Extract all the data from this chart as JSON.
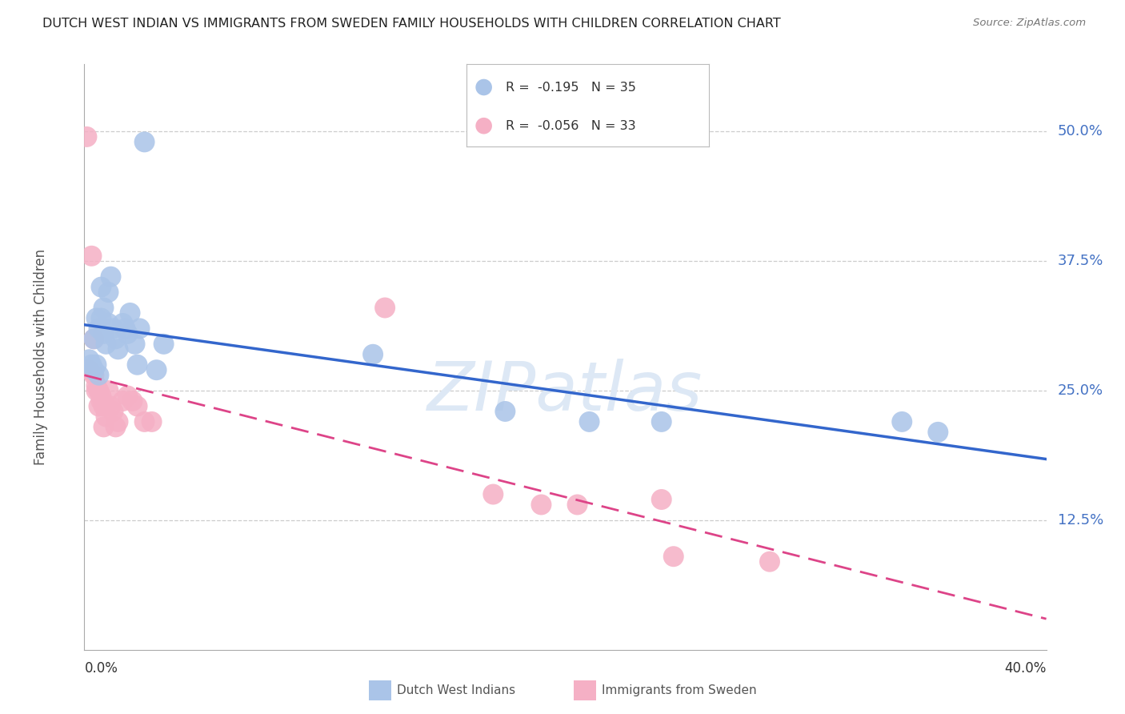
{
  "title": "DUTCH WEST INDIAN VS IMMIGRANTS FROM SWEDEN FAMILY HOUSEHOLDS WITH CHILDREN CORRELATION CHART",
  "source": "Source: ZipAtlas.com",
  "ylabel": "Family Households with Children",
  "right_ytick_labels": [
    "50.0%",
    "37.5%",
    "25.0%",
    "12.5%"
  ],
  "right_ytick_vals": [
    0.5,
    0.375,
    0.25,
    0.125
  ],
  "xlim": [
    0.0,
    0.4
  ],
  "ylim": [
    0.0,
    0.565
  ],
  "legend_blue_r": "R =  -0.195",
  "legend_blue_n": "N = 35",
  "legend_pink_r": "R =  -0.056",
  "legend_pink_n": "N = 33",
  "blue_label": "Dutch West Indians",
  "pink_label": "Immigrants from Sweden",
  "blue_scatter_color": "#aac4e8",
  "pink_scatter_color": "#f5b0c5",
  "blue_line_color": "#3366cc",
  "pink_line_color": "#dd4488",
  "grid_color": "#cccccc",
  "right_axis_color": "#4472c4",
  "watermark": "ZIPatlas",
  "blue_x": [
    0.002,
    0.003,
    0.004,
    0.004,
    0.005,
    0.005,
    0.006,
    0.006,
    0.007,
    0.007,
    0.008,
    0.008,
    0.009,
    0.01,
    0.01,
    0.011,
    0.012,
    0.013,
    0.014,
    0.016,
    0.017,
    0.018,
    0.019,
    0.021,
    0.022,
    0.023,
    0.025,
    0.03,
    0.033,
    0.12,
    0.175,
    0.21,
    0.24,
    0.34,
    0.355
  ],
  "blue_y": [
    0.28,
    0.275,
    0.3,
    0.27,
    0.32,
    0.275,
    0.31,
    0.265,
    0.35,
    0.32,
    0.305,
    0.33,
    0.295,
    0.345,
    0.315,
    0.36,
    0.31,
    0.3,
    0.29,
    0.315,
    0.31,
    0.305,
    0.325,
    0.295,
    0.275,
    0.31,
    0.49,
    0.27,
    0.295,
    0.285,
    0.23,
    0.22,
    0.22,
    0.22,
    0.21
  ],
  "pink_x": [
    0.001,
    0.002,
    0.003,
    0.004,
    0.004,
    0.005,
    0.005,
    0.006,
    0.006,
    0.007,
    0.007,
    0.008,
    0.008,
    0.009,
    0.009,
    0.01,
    0.011,
    0.012,
    0.013,
    0.014,
    0.016,
    0.018,
    0.02,
    0.022,
    0.025,
    0.028,
    0.125,
    0.17,
    0.19,
    0.205,
    0.24,
    0.245,
    0.285
  ],
  "pink_y": [
    0.495,
    0.27,
    0.38,
    0.3,
    0.265,
    0.255,
    0.25,
    0.25,
    0.235,
    0.245,
    0.24,
    0.235,
    0.215,
    0.225,
    0.235,
    0.25,
    0.235,
    0.23,
    0.215,
    0.22,
    0.24,
    0.245,
    0.24,
    0.235,
    0.22,
    0.22,
    0.33,
    0.15,
    0.14,
    0.14,
    0.145,
    0.09,
    0.085
  ]
}
